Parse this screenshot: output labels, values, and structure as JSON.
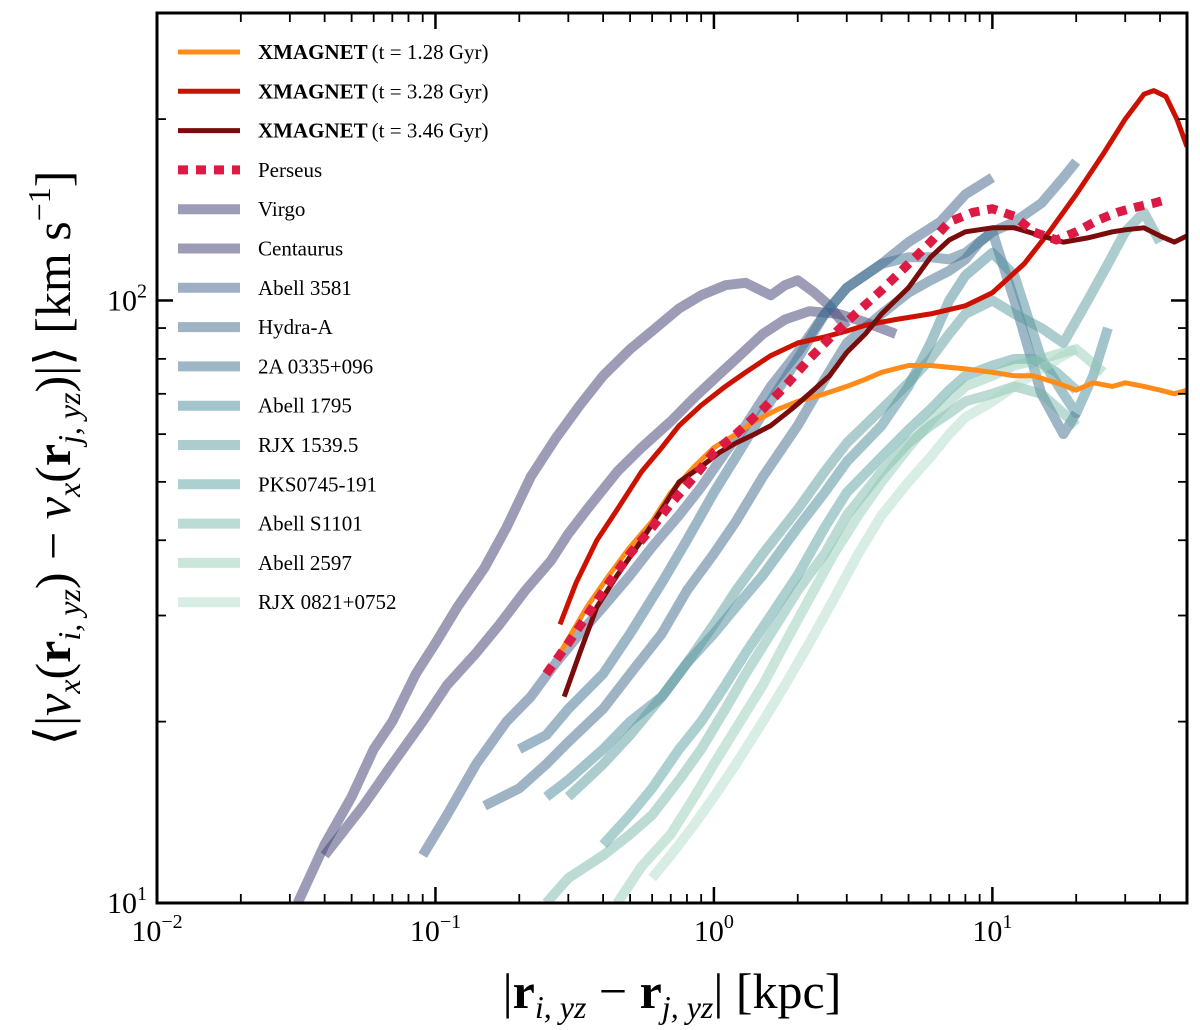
{
  "chart_data": {
    "type": "line",
    "title": "",
    "xlabel": "|r_{i,yz} − r_{j,yz}| [kpc]",
    "ylabel": "⟨|v_x(r_{i,yz}) − v_x(r_{j,yz})|⟩ [km s^{-1}]",
    "xscale": "log",
    "yscale": "log",
    "xlim": [
      0.01,
      50
    ],
    "ylim": [
      10,
      300
    ],
    "x_ticks": [
      {
        "value": 0.01,
        "label": "10",
        "exp": "−2"
      },
      {
        "value": 0.1,
        "label": "10",
        "exp": "−1"
      },
      {
        "value": 1,
        "label": "10",
        "exp": "0"
      },
      {
        "value": 10,
        "label": "10",
        "exp": "1"
      }
    ],
    "y_ticks": [
      {
        "value": 10,
        "label": "10",
        "exp": "1"
      },
      {
        "value": 100,
        "label": "10",
        "exp": "2"
      }
    ],
    "legend_position": "top-left",
    "series": [
      {
        "name": "XMAGNET",
        "suffix": "(t = 1.28 Gyr)",
        "bold": true,
        "color": "#ff8c1a",
        "width": 5,
        "dash": "",
        "opacity": 1,
        "x": [
          0.28,
          0.35,
          0.42,
          0.5,
          0.6,
          0.7,
          0.85,
          1.0,
          1.2,
          1.4,
          1.7,
          2.0,
          2.5,
          3.0,
          3.5,
          4.0,
          5.0,
          6.0,
          8.0,
          10,
          12,
          14,
          17,
          20,
          23,
          27,
          30,
          35,
          40,
          45,
          50
        ],
        "y": [
          26,
          31,
          35,
          39,
          43,
          48,
          53,
          57,
          60,
          63,
          66,
          68,
          70,
          72,
          74,
          76,
          78,
          78,
          77,
          76,
          75,
          75,
          73,
          71,
          73,
          72,
          73,
          72,
          71,
          70,
          71
        ]
      },
      {
        "name": "XMAGNET",
        "suffix": "(t = 3.28 Gyr)",
        "bold": true,
        "color": "#cc1100",
        "width": 5,
        "dash": "",
        "opacity": 1,
        "x": [
          0.28,
          0.32,
          0.38,
          0.45,
          0.55,
          0.65,
          0.75,
          0.9,
          1.1,
          1.3,
          1.6,
          2.0,
          2.5,
          3.0,
          3.5,
          4.5,
          6.0,
          8.0,
          10,
          13,
          16,
          20,
          25,
          30,
          35,
          38,
          42,
          46,
          50
        ],
        "y": [
          29,
          34,
          40,
          45,
          52,
          57,
          62,
          67,
          72,
          76,
          81,
          85,
          87,
          89,
          91,
          93,
          95,
          98,
          103,
          115,
          130,
          150,
          175,
          200,
          220,
          223,
          218,
          200,
          180
        ]
      },
      {
        "name": "XMAGNET",
        "suffix": "(t = 3.46 Gyr)",
        "bold": true,
        "color": "#7a0c0c",
        "width": 5,
        "dash": "",
        "opacity": 1,
        "x": [
          0.29,
          0.33,
          0.38,
          0.45,
          0.55,
          0.65,
          0.75,
          0.9,
          1.05,
          1.2,
          1.4,
          1.6,
          1.9,
          2.2,
          2.6,
          3.0,
          3.5,
          4.0,
          5.0,
          6.0,
          7.0,
          8.0,
          10,
          12,
          15,
          18,
          22,
          27,
          30,
          35,
          40,
          45,
          50
        ],
        "y": [
          22,
          26,
          31,
          35,
          40,
          45,
          50,
          53,
          56,
          58,
          60,
          62,
          66,
          70,
          75,
          82,
          88,
          95,
          105,
          118,
          126,
          130,
          132,
          132,
          128,
          125,
          127,
          130,
          131,
          132,
          128,
          125,
          128
        ]
      },
      {
        "name": "Perseus",
        "suffix": "",
        "bold": false,
        "color": "#dc1a43",
        "width": 9,
        "dash": "10 8",
        "opacity": 1,
        "x": [
          0.25,
          0.3,
          0.35,
          0.42,
          0.5,
          0.6,
          0.7,
          0.85,
          1.0,
          1.2,
          1.5,
          1.8,
          2.2,
          2.7,
          3.3,
          4.0,
          5.0,
          6.0,
          7.0,
          8.5,
          10,
          12,
          14,
          17,
          20,
          24,
          28,
          33,
          38,
          42
        ],
        "y": [
          24,
          27,
          30,
          34,
          38,
          42,
          46,
          51,
          56,
          60,
          66,
          72,
          80,
          88,
          96,
          104,
          115,
          125,
          135,
          140,
          142,
          138,
          130,
          126,
          130,
          136,
          140,
          143,
          145,
          147
        ]
      },
      {
        "name": "Virgo",
        "suffix": "",
        "bold": false,
        "color": "#4a4a7a",
        "width": 10,
        "dash": "",
        "opacity": 0.55,
        "x": [
          0.032,
          0.04,
          0.05,
          0.06,
          0.07,
          0.085,
          0.1,
          0.12,
          0.15,
          0.18,
          0.22,
          0.27,
          0.33,
          0.4,
          0.5,
          0.6,
          0.75,
          0.9,
          1.1,
          1.3,
          1.6,
          1.8,
          2.0,
          2.3,
          2.6,
          3.0
        ],
        "y": [
          10,
          12.5,
          15,
          18,
          20,
          24,
          27,
          31,
          36,
          42,
          51,
          59,
          67,
          75,
          83,
          89,
          97,
          102,
          106,
          107,
          102,
          106,
          108,
          103,
          98,
          90
        ]
      },
      {
        "name": "Centaurus",
        "suffix": "",
        "bold": false,
        "color": "#4a4a7a",
        "width": 10,
        "dash": "",
        "opacity": 0.55,
        "x": [
          0.04,
          0.055,
          0.07,
          0.09,
          0.11,
          0.14,
          0.17,
          0.21,
          0.26,
          0.3,
          0.35,
          0.45,
          0.55,
          0.7,
          0.85,
          1.0,
          1.2,
          1.5,
          1.8,
          2.2,
          2.8,
          3.5,
          4.5
        ],
        "y": [
          12,
          14.5,
          17,
          20,
          23,
          26,
          29,
          33,
          37,
          41,
          45,
          52,
          57,
          63,
          69,
          74,
          80,
          88,
          93,
          96,
          95,
          92,
          88
        ]
      },
      {
        "name": "Abell 3581",
        "suffix": "",
        "bold": false,
        "color": "#3d5f8a",
        "width": 10,
        "dash": "",
        "opacity": 0.5,
        "x": [
          0.09,
          0.11,
          0.14,
          0.18,
          0.22,
          0.27,
          0.33,
          0.4,
          0.5,
          0.6,
          0.75,
          0.9,
          1.1,
          1.3,
          1.6,
          2.0,
          2.5,
          3.0,
          4.0,
          5.0,
          6.5,
          8.0,
          10
        ],
        "y": [
          12,
          14,
          17,
          20,
          22,
          25,
          28,
          31,
          35,
          39,
          44,
          49,
          56,
          62,
          72,
          82,
          95,
          105,
          115,
          125,
          135,
          150,
          160
        ]
      },
      {
        "name": "Hydra-A",
        "suffix": "",
        "bold": false,
        "color": "#3d6a8a",
        "width": 10,
        "dash": "",
        "opacity": 0.5,
        "x": [
          0.15,
          0.2,
          0.25,
          0.3,
          0.4,
          0.5,
          0.65,
          0.8,
          1.0,
          1.2,
          1.5,
          2.0,
          2.5,
          3.0,
          4.0,
          5.0,
          6.0,
          7.0,
          8.0,
          9.0,
          10,
          12,
          15,
          18,
          20
        ],
        "y": [
          14.5,
          15.5,
          17,
          18.5,
          21,
          24,
          28,
          33,
          38,
          43,
          51,
          62,
          74,
          85,
          95,
          103,
          108,
          112,
          117,
          125,
          130,
          135,
          145,
          160,
          170
        ]
      },
      {
        "name": "2A 0335+096",
        "suffix": "",
        "bold": false,
        "color": "#3d7090",
        "width": 10,
        "dash": "",
        "opacity": 0.5,
        "x": [
          0.2,
          0.25,
          0.3,
          0.4,
          0.5,
          0.65,
          0.8,
          1.0,
          1.2,
          1.5,
          2.0,
          2.5,
          3.0,
          4.0,
          5.0,
          6.0,
          7.0,
          8.0,
          10,
          12,
          15,
          18,
          20
        ],
        "y": [
          18,
          19,
          21,
          24,
          28,
          34,
          40,
          48,
          55,
          65,
          80,
          95,
          105,
          115,
          118,
          118,
          117,
          120,
          130,
          100,
          70,
          60,
          65
        ]
      },
      {
        "name": "Abell 1795",
        "suffix": "",
        "bold": false,
        "color": "#4a8a9a",
        "width": 10,
        "dash": "",
        "opacity": 0.5,
        "x": [
          0.25,
          0.3,
          0.4,
          0.5,
          0.65,
          0.8,
          1.0,
          1.2,
          1.5,
          2.0,
          2.5,
          3.0,
          4.0,
          5.0,
          6.0,
          7.0,
          8.0,
          10,
          12,
          15,
          18,
          20,
          23,
          26
        ],
        "y": [
          15,
          16,
          18,
          20,
          22,
          25,
          28,
          31,
          35,
          42,
          48,
          54,
          62,
          72,
          85,
          100,
          110,
          120,
          110,
          80,
          70,
          65,
          75,
          90
        ]
      },
      {
        "name": "RJX 1539.5",
        "suffix": "",
        "bold": false,
        "color": "#5a9a9e",
        "width": 10,
        "dash": "",
        "opacity": 0.5,
        "x": [
          0.3,
          0.4,
          0.5,
          0.65,
          0.8,
          1.0,
          1.2,
          1.5,
          2.0,
          2.5,
          3.0,
          4.0,
          5.0,
          6.0,
          7.0,
          8.0,
          10,
          12,
          15,
          18,
          22,
          26,
          30,
          35,
          40
        ],
        "y": [
          15,
          17,
          19,
          22,
          25,
          29,
          33,
          38,
          45,
          52,
          58,
          66,
          73,
          80,
          88,
          95,
          100,
          95,
          90,
          85,
          100,
          115,
          130,
          140,
          125
        ]
      },
      {
        "name": "PKS0745-191",
        "suffix": "",
        "bold": false,
        "color": "#5aa0a0",
        "width": 10,
        "dash": "",
        "opacity": 0.5,
        "x": [
          0.4,
          0.5,
          0.6,
          0.75,
          0.9,
          1.1,
          1.3,
          1.6,
          2.0,
          2.5,
          3.0,
          4.0,
          5.0,
          6.0,
          7.0,
          8.0,
          10,
          12,
          14,
          17,
          20
        ],
        "y": [
          12.5,
          14,
          15.5,
          18,
          20,
          23,
          26,
          30,
          35,
          42,
          48,
          55,
          61,
          66,
          71,
          75,
          78,
          80,
          80,
          76,
          71
        ]
      },
      {
        "name": "Abell S1101",
        "suffix": "",
        "bold": false,
        "color": "#6ab0a0",
        "width": 10,
        "dash": "",
        "opacity": 0.45,
        "x": [
          0.25,
          0.3,
          0.4,
          0.5,
          0.6,
          0.75,
          0.9,
          1.1,
          1.3,
          1.6,
          2.0,
          2.5,
          3.0,
          4.0,
          5.0,
          6.0,
          7.0,
          8.0,
          10,
          12,
          15,
          18,
          20
        ],
        "y": [
          10,
          11,
          12,
          13,
          14,
          16,
          18,
          21,
          24,
          28,
          33,
          38,
          44,
          52,
          58,
          62,
          65,
          68,
          70,
          72,
          70,
          65,
          62
        ]
      },
      {
        "name": "Abell 2597",
        "suffix": "",
        "bold": false,
        "color": "#8ac8b0",
        "width": 10,
        "dash": "",
        "opacity": 0.45,
        "x": [
          0.45,
          0.55,
          0.7,
          0.85,
          1.0,
          1.2,
          1.5,
          1.8,
          2.2,
          2.7,
          3.3,
          4.0,
          5.0,
          6.0,
          7.0,
          8.0,
          10,
          12,
          15,
          18,
          20,
          22,
          25
        ],
        "y": [
          10,
          11.5,
          13,
          15,
          17,
          19.5,
          23,
          27,
          32,
          38,
          44,
          50,
          57,
          63,
          68,
          72,
          75,
          78,
          80,
          82,
          83,
          80,
          76
        ]
      },
      {
        "name": "RJX 0821+0752",
        "suffix": "",
        "bold": false,
        "color": "#a8d8c0",
        "width": 10,
        "dash": "",
        "opacity": 0.45,
        "x": [
          0.6,
          0.7,
          0.85,
          1.0,
          1.2,
          1.5,
          1.8,
          2.2,
          2.7,
          3.3,
          4.0,
          5.0,
          6.0,
          7.0,
          8.0,
          10,
          12,
          15,
          18,
          20
        ],
        "y": [
          11,
          12,
          13.5,
          15,
          17,
          20,
          23,
          27,
          32,
          38,
          44,
          50,
          55,
          60,
          64,
          68,
          72,
          77,
          81,
          83
        ]
      }
    ]
  }
}
